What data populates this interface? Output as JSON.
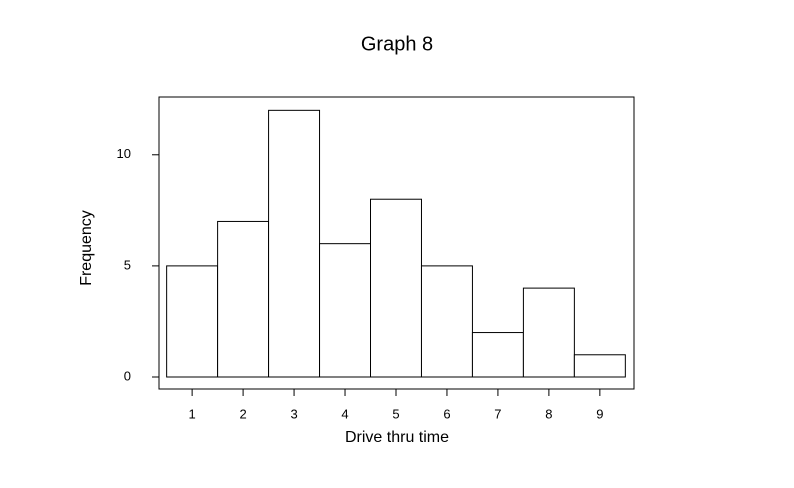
{
  "chart_data": {
    "type": "histogram",
    "title": "Graph 8",
    "x_label": "Drive thru time",
    "y_label": "Frequency",
    "bins": [
      0.5,
      1.5,
      2.5,
      3.5,
      4.5,
      5.5,
      6.5,
      7.5,
      8.5,
      9.5
    ],
    "values": [
      5,
      7,
      12,
      6,
      8,
      5,
      2,
      4,
      1
    ],
    "color": "#ffffff",
    "xlim": [
      0.35,
      9.67
    ],
    "ylim": [
      -0.54,
      12.6
    ],
    "xticks": [
      1,
      2,
      3,
      4,
      5,
      6,
      7,
      8,
      9
    ],
    "yticks": [
      0,
      5,
      10
    ]
  }
}
